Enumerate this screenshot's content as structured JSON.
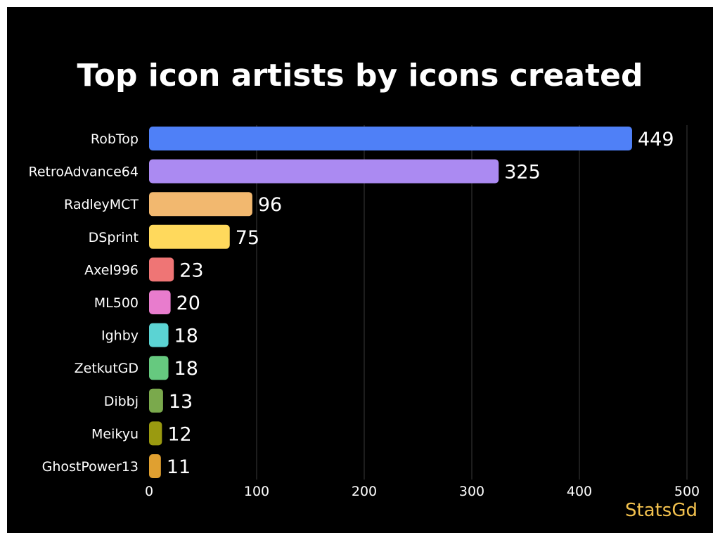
{
  "chart_data": {
    "type": "bar",
    "orientation": "horizontal",
    "title": "Top icon artists by icons created",
    "categories": [
      "RobTop",
      "RetroAdvance64",
      "RadleyMCT",
      "DSprint",
      "Axel996",
      "ML500",
      "Ighby",
      "ZetkutGD",
      "Dibbj",
      "Meikyu",
      "GhostPower13"
    ],
    "values": [
      449,
      325,
      96,
      75,
      23,
      20,
      18,
      18,
      13,
      12,
      11
    ],
    "colors": [
      "#4f80f7",
      "#ab8af2",
      "#f2b86f",
      "#ffd95c",
      "#ef7575",
      "#e87ccd",
      "#5bd3d3",
      "#66c97f",
      "#7aa94c",
      "#9a9a10",
      "#e0a030"
    ],
    "xlim": [
      0,
      500
    ],
    "xticks": [
      0,
      100,
      200,
      300,
      400,
      500
    ],
    "xlabel": "",
    "ylabel": "",
    "grid": "vertical",
    "legend": "none"
  },
  "brand": "StatsGd",
  "colors": {
    "background": "#000000",
    "text": "#ffffff",
    "grid": "#3a3a3a",
    "brand": "#f2c14e"
  }
}
